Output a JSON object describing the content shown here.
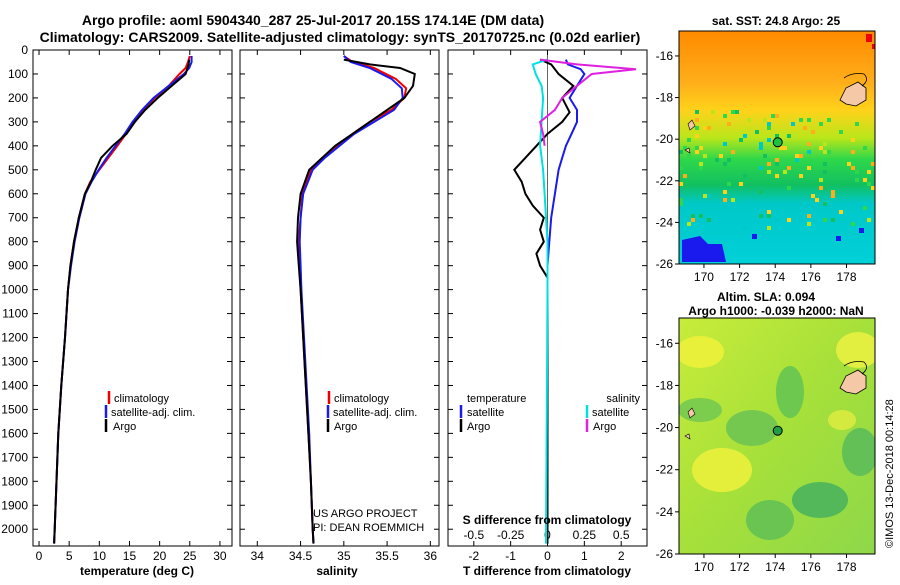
{
  "header": {
    "title1": "Argo profile: aoml 5904340_287 25-Jul-2017 20.15S 174.14E (DM data)",
    "title2": "Climatology: CARS2009. Satellite-adjusted climatology: synTS_20170725.nc (0.02d earlier)"
  },
  "colors": {
    "climatology": "#ee0000",
    "satellite": "#1a1aee",
    "argo": "#000000",
    "sat_salinity": "#00e0e0",
    "argo_salinity": "#e020e0"
  },
  "depth_ticks": [
    0,
    100,
    200,
    300,
    400,
    500,
    600,
    700,
    800,
    900,
    1000,
    1100,
    1200,
    1300,
    1400,
    1500,
    1600,
    1700,
    1800,
    1900,
    2000
  ],
  "chart_data": [
    {
      "type": "line",
      "name": "temperature-panel",
      "xlabel": "temperature (deg C)",
      "ylabel": "depth",
      "xlim": [
        -1,
        32
      ],
      "ylim": [
        2070,
        0
      ],
      "xticks": [
        0,
        5,
        10,
        15,
        20,
        25,
        30
      ],
      "legend": [
        "climatology",
        "satellite-adj. clim.",
        "Argo"
      ],
      "series": [
        {
          "name": "climatology",
          "color": "#ee0000",
          "points": [
            [
              25,
              25
            ],
            [
              24.7,
              50
            ],
            [
              24.3,
              75
            ],
            [
              23.3,
              100
            ],
            [
              21.5,
              150
            ],
            [
              19.2,
              200
            ],
            [
              17.2,
              250
            ],
            [
              15.6,
              300
            ],
            [
              14.4,
              350
            ],
            [
              13,
              400
            ],
            [
              11.5,
              450
            ],
            [
              10,
              500
            ],
            [
              8.5,
              550
            ],
            [
              7.6,
              600
            ],
            [
              6.6,
              700
            ],
            [
              5.8,
              800
            ],
            [
              5.2,
              900
            ],
            [
              4.8,
              1000
            ],
            [
              4.3,
              1200
            ],
            [
              3.7,
              1400
            ],
            [
              3.2,
              1600
            ],
            [
              2.9,
              1800
            ],
            [
              2.6,
              2000
            ],
            [
              2.5,
              2060
            ]
          ]
        },
        {
          "name": "satellite-adj. clim.",
          "color": "#1a1aee",
          "points": [
            [
              25.3,
              25
            ],
            [
              25.3,
              50
            ],
            [
              24.9,
              75
            ],
            [
              24,
              100
            ],
            [
              21.5,
              150
            ],
            [
              19,
              200
            ],
            [
              17.1,
              250
            ],
            [
              15.5,
              300
            ],
            [
              14.2,
              350
            ],
            [
              12.7,
              400
            ],
            [
              11.2,
              450
            ],
            [
              9.9,
              500
            ],
            [
              8.7,
              550
            ],
            [
              7.7,
              600
            ],
            [
              6.7,
              700
            ],
            [
              5.9,
              800
            ],
            [
              5.3,
              900
            ],
            [
              4.8,
              1000
            ],
            [
              4.3,
              1200
            ],
            [
              3.7,
              1400
            ],
            [
              3.2,
              1600
            ],
            [
              2.9,
              1800
            ],
            [
              2.6,
              2000
            ],
            [
              2.5,
              2060
            ]
          ]
        },
        {
          "name": "Argo",
          "color": "#000000",
          "points": [
            [
              24.9,
              40
            ],
            [
              24.8,
              60
            ],
            [
              24.3,
              100
            ],
            [
              22,
              150
            ],
            [
              19.7,
              200
            ],
            [
              17.6,
              250
            ],
            [
              15.9,
              300
            ],
            [
              14.5,
              350
            ],
            [
              12.2,
              400
            ],
            [
              10.3,
              450
            ],
            [
              9.4,
              500
            ],
            [
              8.6,
              550
            ],
            [
              7.6,
              600
            ],
            [
              6.6,
              700
            ],
            [
              5.8,
              800
            ],
            [
              5.2,
              900
            ],
            [
              4.8,
              1000
            ],
            [
              4.3,
              1200
            ],
            [
              3.7,
              1400
            ],
            [
              3.2,
              1600
            ],
            [
              2.9,
              1800
            ],
            [
              2.6,
              2000
            ],
            [
              2.5,
              2060
            ]
          ]
        }
      ]
    },
    {
      "type": "line",
      "name": "salinity-panel",
      "xlabel": "salinity",
      "ylabel": "depth",
      "xlim": [
        33.8,
        36.1
      ],
      "ylim": [
        2070,
        0
      ],
      "xticks": [
        34,
        34.5,
        35,
        35.5,
        36
      ],
      "legend": [
        "climatology",
        "satellite-adj. clim.",
        "Argo"
      ],
      "series": [
        {
          "name": "climatology",
          "color": "#ee0000",
          "points": [
            [
              35.0,
              25
            ],
            [
              35.1,
              50
            ],
            [
              35.35,
              75
            ],
            [
              35.6,
              120
            ],
            [
              35.72,
              160
            ],
            [
              35.7,
              200
            ],
            [
              35.55,
              250
            ],
            [
              35.3,
              300
            ],
            [
              35.1,
              350
            ],
            [
              34.92,
              400
            ],
            [
              34.75,
              450
            ],
            [
              34.62,
              500
            ],
            [
              34.52,
              600
            ],
            [
              34.5,
              700
            ],
            [
              34.48,
              800
            ],
            [
              34.49,
              900
            ],
            [
              34.5,
              1000
            ],
            [
              34.53,
              1200
            ],
            [
              34.56,
              1400
            ],
            [
              34.59,
              1600
            ],
            [
              34.62,
              1800
            ],
            [
              34.64,
              2000
            ],
            [
              34.65,
              2060
            ]
          ]
        },
        {
          "name": "satellite-adj. clim.",
          "color": "#1a1aee",
          "points": [
            [
              35.0,
              25
            ],
            [
              35.08,
              50
            ],
            [
              35.3,
              75
            ],
            [
              35.55,
              120
            ],
            [
              35.67,
              160
            ],
            [
              35.68,
              200
            ],
            [
              35.58,
              250
            ],
            [
              35.35,
              300
            ],
            [
              35.12,
              350
            ],
            [
              34.95,
              400
            ],
            [
              34.78,
              450
            ],
            [
              34.64,
              500
            ],
            [
              34.53,
              600
            ],
            [
              34.5,
              700
            ],
            [
              34.49,
              800
            ],
            [
              34.5,
              900
            ],
            [
              34.51,
              1000
            ],
            [
              34.54,
              1200
            ],
            [
              34.57,
              1400
            ],
            [
              34.6,
              1600
            ],
            [
              34.62,
              1800
            ],
            [
              34.64,
              2000
            ],
            [
              34.65,
              2060
            ]
          ]
        },
        {
          "name": "Argo",
          "color": "#000000",
          "points": [
            [
              35.0,
              40
            ],
            [
              35.3,
              60
            ],
            [
              35.65,
              75
            ],
            [
              35.82,
              100
            ],
            [
              35.8,
              150
            ],
            [
              35.7,
              200
            ],
            [
              35.5,
              250
            ],
            [
              35.3,
              300
            ],
            [
              35.1,
              350
            ],
            [
              34.9,
              400
            ],
            [
              34.75,
              450
            ],
            [
              34.6,
              500
            ],
            [
              34.5,
              600
            ],
            [
              34.47,
              700
            ],
            [
              34.46,
              800
            ],
            [
              34.48,
              900
            ],
            [
              34.5,
              1000
            ],
            [
              34.53,
              1200
            ],
            [
              34.56,
              1400
            ],
            [
              34.59,
              1600
            ],
            [
              34.62,
              1800
            ],
            [
              34.64,
              2000
            ],
            [
              34.65,
              2060
            ]
          ]
        }
      ],
      "credits": [
        "US ARGO PROJECT",
        "PI: DEAN ROEMMICH"
      ]
    },
    {
      "type": "line",
      "name": "difference-panel",
      "xlabel": "T difference from climatology",
      "top_axis_label": "S difference from climatology",
      "xlim": [
        -2.7,
        2.7
      ],
      "ylim": [
        2070,
        0
      ],
      "xticks": [
        -2,
        -1,
        0,
        1,
        2
      ],
      "top_ticks": [
        -0.5,
        -0.25,
        0,
        0.25,
        0.5
      ],
      "top_tick_labels": [
        "-0.5",
        "-0.25",
        "0",
        "0.25",
        "0.5"
      ],
      "legend_temperature": [
        "temperature",
        "satellite",
        "Argo"
      ],
      "legend_salinity": [
        "salinity",
        "satellite",
        "Argo"
      ],
      "series": [
        {
          "name": "T satellite",
          "color": "#1a1aee",
          "points": [
            [
              0.5,
              40
            ],
            [
              0.55,
              60
            ],
            [
              0.9,
              80
            ],
            [
              1.0,
              100
            ],
            [
              0.8,
              150
            ],
            [
              0.6,
              200
            ],
            [
              0.8,
              250
            ],
            [
              0.8,
              300
            ],
            [
              0.65,
              350
            ],
            [
              0.5,
              400
            ],
            [
              0.4,
              450
            ],
            [
              0.3,
              500
            ],
            [
              0.2,
              600
            ],
            [
              0.1,
              700
            ],
            [
              0.05,
              800
            ],
            [
              0,
              900
            ],
            [
              0,
              1000
            ],
            [
              0,
              2060
            ]
          ]
        },
        {
          "name": "T Argo",
          "color": "#000000",
          "points": [
            [
              -0.2,
              40
            ],
            [
              0.1,
              60
            ],
            [
              0.3,
              100
            ],
            [
              0.7,
              150
            ],
            [
              0.4,
              200
            ],
            [
              0.6,
              260
            ],
            [
              0.4,
              300
            ],
            [
              0,
              350
            ],
            [
              -0.6,
              450
            ],
            [
              -0.9,
              500
            ],
            [
              -0.7,
              550
            ],
            [
              -0.6,
              600
            ],
            [
              -0.4,
              650
            ],
            [
              -0.1,
              700
            ],
            [
              -0.2,
              750
            ],
            [
              -0.1,
              800
            ],
            [
              -0.3,
              850
            ],
            [
              -0.2,
              900
            ],
            [
              0,
              950
            ],
            [
              0,
              2060
            ]
          ]
        },
        {
          "name": "S satellite",
          "color": "#00e0e0",
          "points": [
            [
              0.0,
              40
            ],
            [
              -0.1,
              60
            ],
            [
              -0.08,
              100
            ],
            [
              -0.04,
              150
            ],
            [
              -0.03,
              200
            ],
            [
              -0.04,
              300
            ],
            [
              -0.05,
              400
            ],
            [
              -0.03,
              500
            ],
            [
              -0.02,
              600
            ],
            [
              -0.01,
              700
            ],
            [
              0,
              800
            ],
            [
              0,
              900
            ],
            [
              0,
              1000
            ],
            [
              -0.01,
              2060
            ]
          ]
        },
        {
          "name": "S Argo",
          "color": "#e020e0",
          "points": [
            [
              -0.05,
              40
            ],
            [
              0.2,
              60
            ],
            [
              0.6,
              80
            ],
            [
              0.3,
              100
            ],
            [
              0.2,
              150
            ],
            [
              0.1,
              200
            ],
            [
              0.05,
              250
            ],
            [
              -0.05,
              300
            ],
            [
              -0.03,
              350
            ],
            [
              -0.02,
              400
            ]
          ]
        }
      ]
    },
    {
      "type": "heatmap",
      "name": "sst-map",
      "title": "sat. SST: 24.8 Argo: 25",
      "xticks": [
        170,
        172,
        174,
        176,
        178
      ],
      "yticks": [
        -16,
        -18,
        -20,
        -22,
        -24,
        -26
      ],
      "xlim": [
        168.6,
        179.6
      ],
      "ylim": [
        -26,
        -14.8
      ],
      "argo_position": [
        174.14,
        -20.15
      ]
    },
    {
      "type": "heatmap",
      "name": "sla-map",
      "title1": "Altim. SLA: 0.094",
      "title2": "Argo h1000: -0.039 h2000: NaN",
      "xticks": [
        170,
        172,
        174,
        176,
        178
      ],
      "yticks": [
        -16,
        -18,
        -20,
        -22,
        -24,
        -26
      ],
      "xlim": [
        168.6,
        179.6
      ],
      "ylim": [
        -26,
        -14.8
      ],
      "argo_position": [
        174.14,
        -20.15
      ]
    }
  ],
  "footer": {
    "imos_stamp": "©IMOS 13-Dec-2018 00:14:28"
  }
}
